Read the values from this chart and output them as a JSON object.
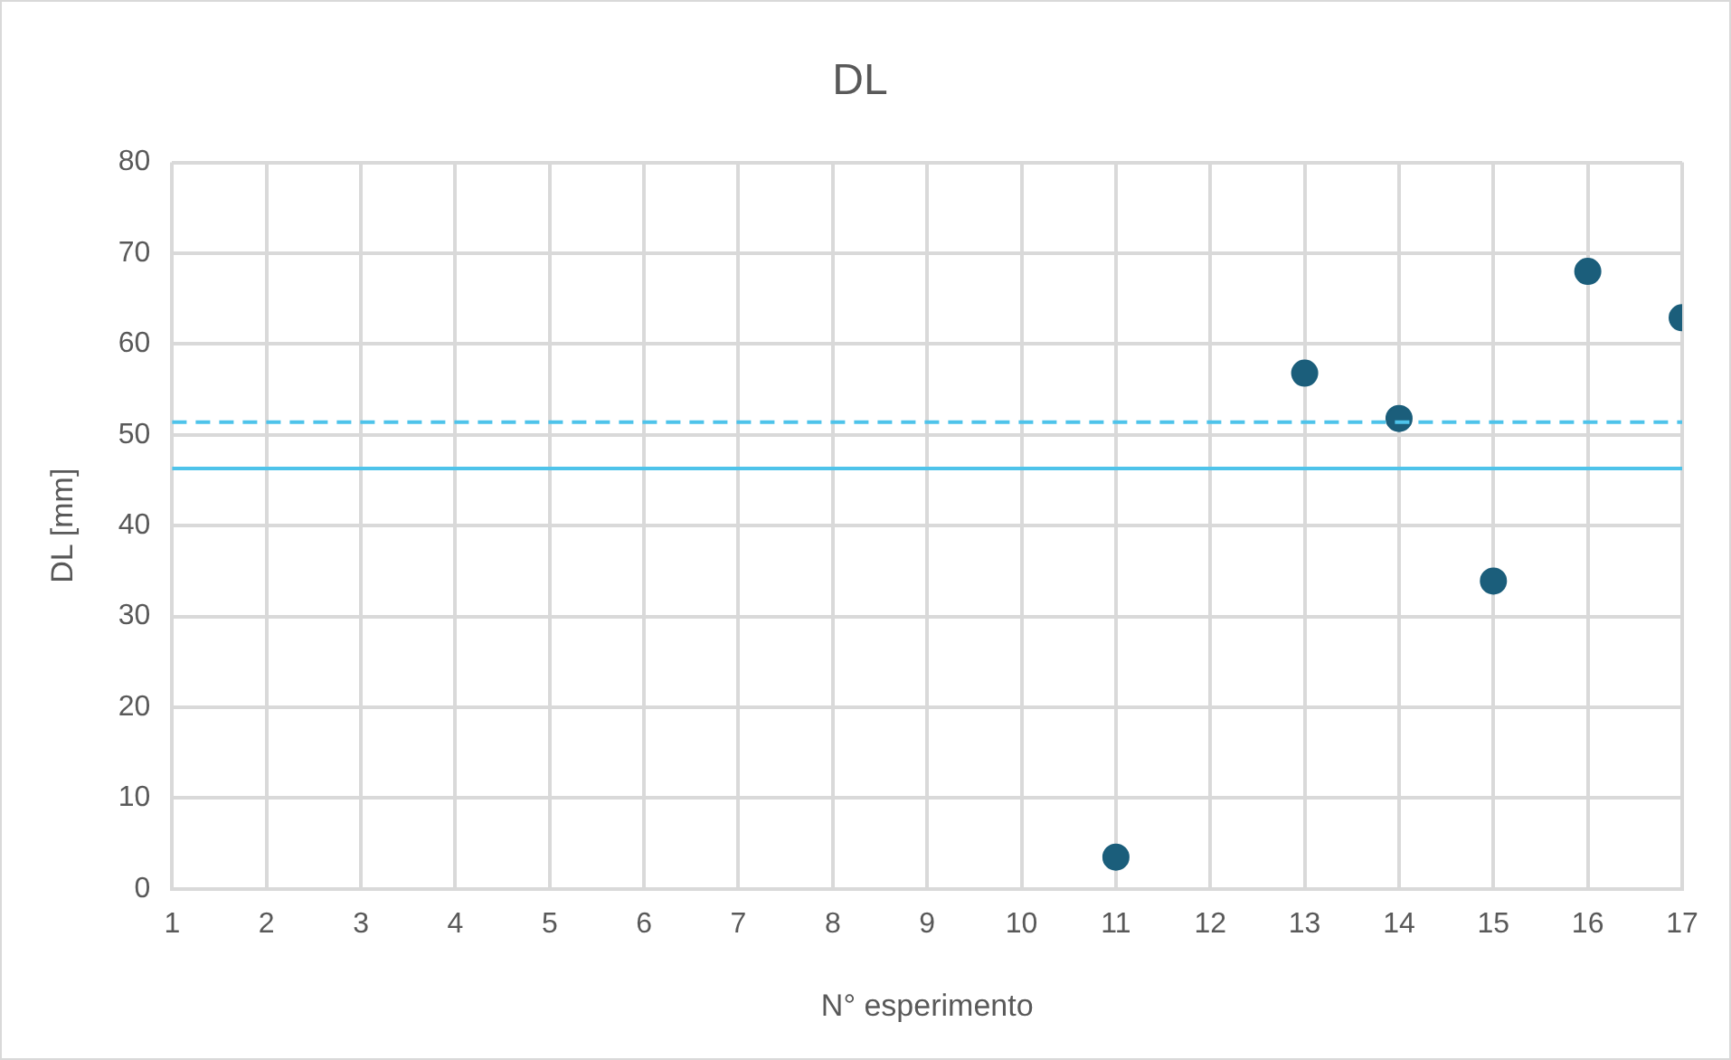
{
  "chart_data": {
    "type": "scatter",
    "title": "DL",
    "xlabel": "N° esperimento",
    "ylabel": "DL [mm]",
    "x": [
      11,
      13,
      14,
      15,
      16,
      17
    ],
    "series": [
      {
        "color": "#1b5e7b",
        "values": [
          3.5,
          56.8,
          51.8,
          33.9,
          68.0,
          62.9
        ]
      }
    ],
    "xlim": [
      1,
      17
    ],
    "xticks": [
      1,
      2,
      3,
      4,
      5,
      6,
      7,
      8,
      9,
      10,
      11,
      12,
      13,
      14,
      15,
      16,
      17
    ],
    "ylim": [
      0,
      80
    ],
    "yticks": [
      0,
      10,
      20,
      30,
      40,
      50,
      60,
      70,
      80
    ],
    "ref_lines": [
      {
        "axis": "y",
        "value": 46.3,
        "color": "#4ec3ea",
        "line_style": "solid"
      },
      {
        "axis": "y",
        "value": 51.4,
        "color": "#4ec3ea",
        "line_style": "dashed"
      }
    ],
    "grid": true,
    "legend": false,
    "marker": "circle"
  }
}
